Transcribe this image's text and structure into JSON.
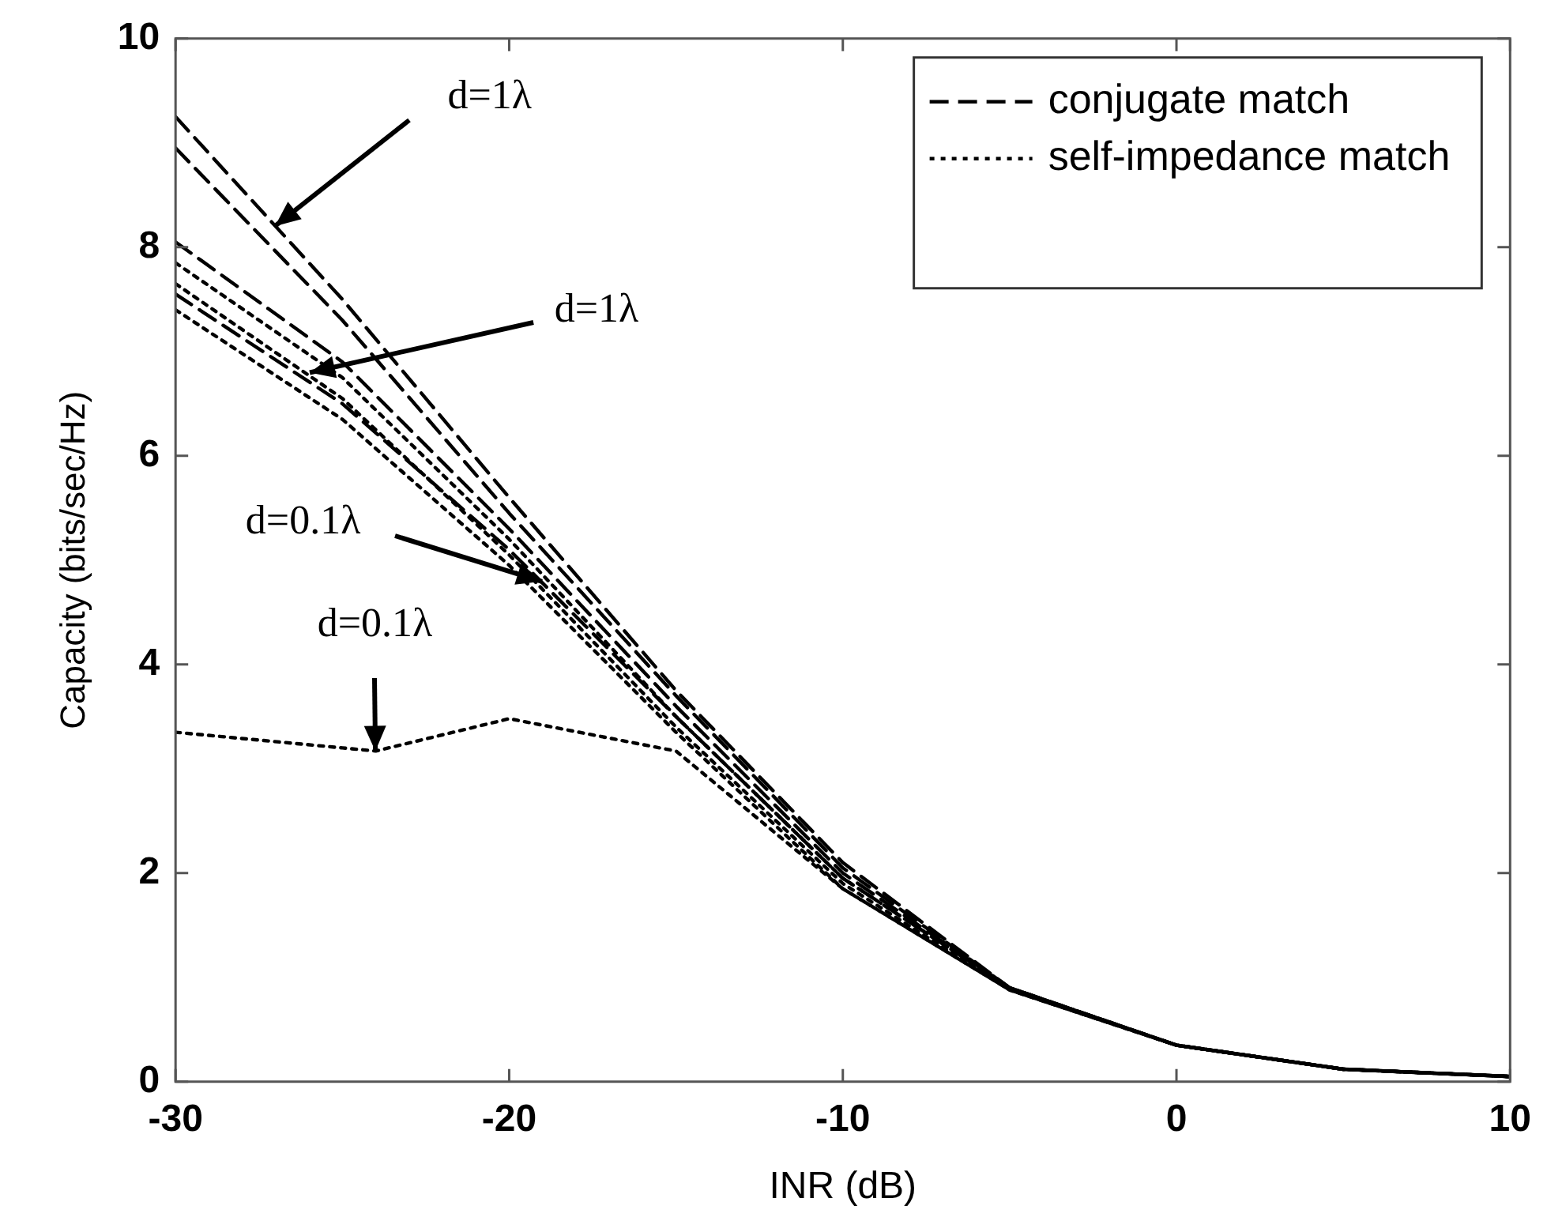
{
  "chart_data": {
    "type": "line",
    "xlabel": "INR (dB)",
    "ylabel": "Capacity (bits/sec/Hz)",
    "xlim": [
      -30,
      10
    ],
    "xticks": [
      -30,
      -20,
      -10,
      0,
      10
    ],
    "ylim": [
      0,
      10
    ],
    "yticks": [
      0,
      2,
      4,
      6,
      8,
      10
    ],
    "grid": false,
    "legend": "top right",
    "marker": "none",
    "x": [
      -30,
      -25,
      -20,
      -15,
      -10,
      -5,
      0,
      5,
      10
    ],
    "series": [
      {
        "name": "conjugate match",
        "color": "#000000",
        "line_style": "dashed",
        "values": [
          9.25,
          7.5,
          5.6,
          3.75,
          2.1,
          0.9,
          0.35,
          0.12,
          0.05
        ]
      },
      {
        "color": "#000000",
        "line_style": "dashed",
        "values": [
          8.95,
          7.3,
          5.45,
          3.7,
          2.05,
          0.9,
          0.35,
          0.12,
          0.05
        ]
      },
      {
        "color": "#000000",
        "line_style": "dashed",
        "values": [
          8.05,
          6.9,
          5.3,
          3.6,
          2.0,
          0.9,
          0.35,
          0.12,
          0.05
        ]
      },
      {
        "color": "#000000",
        "line_style": "dashed",
        "values": [
          7.55,
          6.5,
          5.1,
          3.5,
          1.95,
          0.9,
          0.35,
          0.12,
          0.05
        ]
      },
      {
        "name": "self-impedance match",
        "color": "#000000",
        "line_style": "dotted",
        "values": [
          7.85,
          6.75,
          5.2,
          3.5,
          1.95,
          0.9,
          0.35,
          0.12,
          0.05
        ]
      },
      {
        "color": "#000000",
        "line_style": "dotted",
        "values": [
          7.65,
          6.55,
          5.05,
          3.4,
          1.9,
          0.88,
          0.35,
          0.12,
          0.05
        ]
      },
      {
        "color": "#000000",
        "line_style": "dotted",
        "values": [
          7.4,
          6.35,
          4.95,
          3.35,
          1.85,
          0.88,
          0.35,
          0.12,
          0.05
        ]
      },
      {
        "color": "#000000",
        "line_style": "dotted",
        "x": [
          -30,
          -25,
          -24,
          -20,
          -15,
          -10,
          -5,
          0,
          5,
          10
        ],
        "values": [
          3.35,
          3.2,
          3.17,
          3.48,
          3.17,
          1.85,
          0.88,
          0.35,
          0.12,
          0.05
        ]
      }
    ],
    "annotations": [
      {
        "text": "d=1λ",
        "x": -27,
        "y": 8.2
      },
      {
        "text": "d=1λ",
        "x": -26,
        "y": 6.8
      },
      {
        "text": "d=0.1λ",
        "x": -19,
        "y": 4.8
      },
      {
        "text": "d=0.1λ",
        "x": -24,
        "y": 3.17
      }
    ]
  }
}
